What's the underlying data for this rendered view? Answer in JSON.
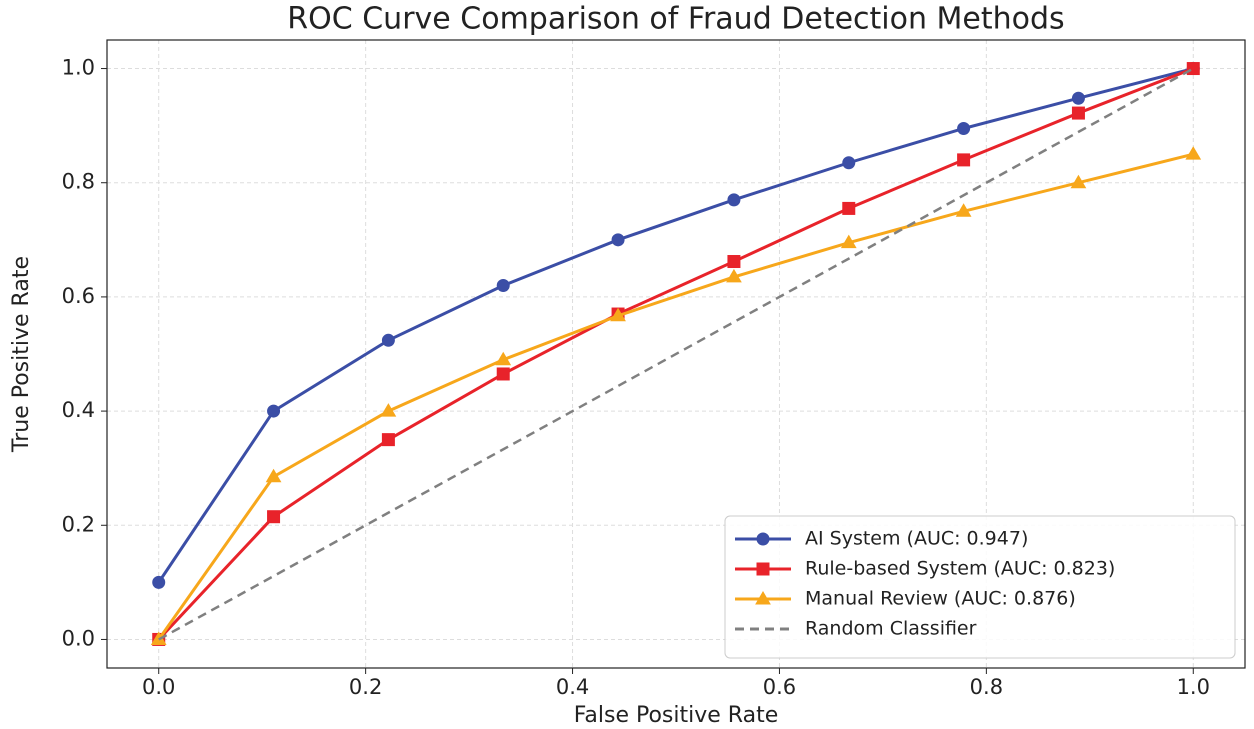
{
  "chart_data": {
    "type": "line",
    "title": "ROC Curve Comparison of Fraud Detection Methods",
    "xlabel": "False Positive Rate",
    "ylabel": "True Positive Rate",
    "xlim": [
      -0.05,
      1.05
    ],
    "ylim": [
      -0.05,
      1.05
    ],
    "xticks": [
      {
        "value": 0,
        "label": "0.0"
      },
      {
        "value": 0.2,
        "label": "0.2"
      },
      {
        "value": 0.4,
        "label": "0.4"
      },
      {
        "value": 0.6,
        "label": "0.6"
      },
      {
        "value": 0.8,
        "label": "0.8"
      },
      {
        "value": 1,
        "label": "1.0"
      }
    ],
    "yticks": [
      {
        "value": 0,
        "label": "0.0"
      },
      {
        "value": 0.2,
        "label": "0.2"
      },
      {
        "value": 0.4,
        "label": "0.4"
      },
      {
        "value": 0.6,
        "label": "0.6"
      },
      {
        "value": 0.8,
        "label": "0.8"
      },
      {
        "value": 1,
        "label": "1.0"
      }
    ],
    "grid": true,
    "legend": "lower right",
    "series": [
      {
        "name": "AI System (AUC: 0.947)",
        "color": "#3b4ea6",
        "marker": "circle",
        "linestyle": "solid",
        "x": [
          0,
          0.111,
          0.222,
          0.333,
          0.444,
          0.556,
          0.667,
          0.778,
          0.889,
          1
        ],
        "values": [
          0.1,
          0.4,
          0.524,
          0.62,
          0.7,
          0.77,
          0.835,
          0.895,
          0.948,
          1
        ]
      },
      {
        "name": "Rule-based System (AUC: 0.823)",
        "color": "#e8232a",
        "marker": "square",
        "linestyle": "solid",
        "x": [
          0,
          0.111,
          0.222,
          0.333,
          0.444,
          0.556,
          0.667,
          0.778,
          0.889,
          1
        ],
        "values": [
          0,
          0.215,
          0.35,
          0.465,
          0.57,
          0.662,
          0.755,
          0.84,
          0.922,
          1
        ]
      },
      {
        "name": "Manual Review (AUC: 0.876)",
        "color": "#f7a71b",
        "marker": "triangle",
        "linestyle": "solid",
        "x": [
          0,
          0.111,
          0.222,
          0.333,
          0.444,
          0.556,
          0.667,
          0.778,
          0.889,
          1
        ],
        "values": [
          0,
          0.285,
          0.4,
          0.49,
          0.567,
          0.635,
          0.695,
          0.75,
          0.8,
          0.85
        ]
      },
      {
        "name": "Random Classifier",
        "color": "#808080",
        "marker": "none",
        "linestyle": "dashed",
        "x": [
          0,
          1
        ],
        "values": [
          0,
          1
        ]
      }
    ]
  }
}
